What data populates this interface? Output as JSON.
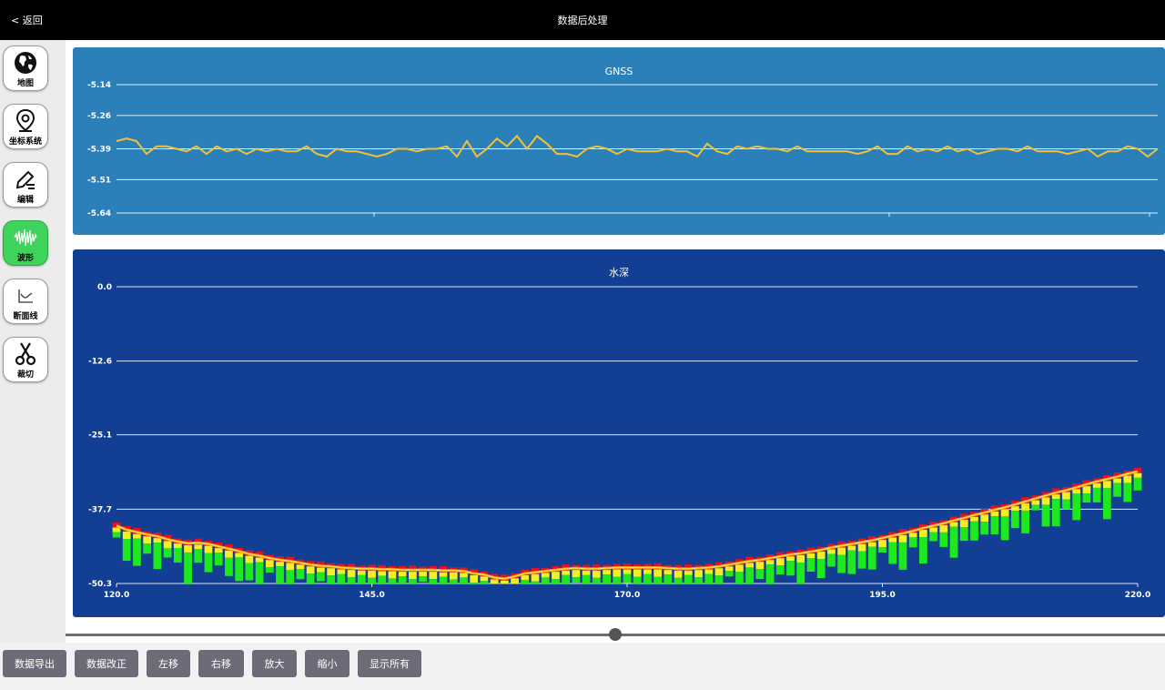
{
  "header": {
    "back_label": "< 返回",
    "title": "数据后处理"
  },
  "sidebar": {
    "items": [
      {
        "label": "地图",
        "icon": "globe-icon"
      },
      {
        "label": "坐标系统",
        "icon": "map-pin-icon"
      },
      {
        "label": "编辑",
        "icon": "edit-icon"
      },
      {
        "label": "波形",
        "icon": "waveform-icon",
        "active": true
      },
      {
        "label": "断面线",
        "icon": "section-chart-icon"
      },
      {
        "label": "裁切",
        "icon": "scissors-icon"
      }
    ]
  },
  "slider": {
    "value": 0.5
  },
  "toolbar": {
    "buttons": [
      "数据导出",
      "数据改正",
      "左移",
      "右移",
      "放大",
      "缩小",
      "显示所有"
    ]
  },
  "colors": {
    "gnss_background": "#2b80ba",
    "depth_background": "#123f94",
    "gnss_line": "#f1c232",
    "active_tool": "#3fd35c"
  },
  "chart_data": [
    {
      "type": "line",
      "title": "GNSS",
      "yticks": [
        "-5.14",
        "-5.26",
        "-5.39",
        "-5.51",
        "-5.64"
      ],
      "ylim": [
        -5.64,
        -5.14
      ],
      "grid": true,
      "series": [
        {
          "values": [
            -5.36,
            -5.35,
            -5.36,
            -5.41,
            -5.38,
            -5.38,
            -5.39,
            -5.4,
            -5.38,
            -5.41,
            -5.38,
            -5.4,
            -5.39,
            -5.41,
            -5.39,
            -5.4,
            -5.39,
            -5.4,
            -5.4,
            -5.38,
            -5.41,
            -5.42,
            -5.39,
            -5.4,
            -5.4,
            -5.41,
            -5.42,
            -5.41,
            -5.39,
            -5.39,
            -5.4,
            -5.39,
            -5.39,
            -5.38,
            -5.42,
            -5.36,
            -5.42,
            -5.39,
            -5.35,
            -5.38,
            -5.34,
            -5.39,
            -5.34,
            -5.37,
            -5.41,
            -5.41,
            -5.42,
            -5.39,
            -5.38,
            -5.39,
            -5.41,
            -5.39,
            -5.4,
            -5.4,
            -5.4,
            -5.39,
            -5.4,
            -5.4,
            -5.42,
            -5.37,
            -5.4,
            -5.41,
            -5.38,
            -5.39,
            -5.38,
            -5.39,
            -5.39,
            -5.4,
            -5.38,
            -5.4,
            -5.4,
            -5.4,
            -5.4,
            -5.4,
            -5.41,
            -5.4,
            -5.38,
            -5.41,
            -5.41,
            -5.38,
            -5.4,
            -5.39,
            -5.4,
            -5.38,
            -5.4,
            -5.39,
            -5.41,
            -5.4,
            -5.39,
            -5.39,
            -5.4,
            -5.38,
            -5.4,
            -5.4,
            -5.4,
            -5.41,
            -5.4,
            -5.39,
            -5.42,
            -5.4,
            -5.4,
            -5.38,
            -5.39,
            -5.42,
            -5.39
          ]
        }
      ]
    },
    {
      "type": "bar",
      "title": "水深",
      "yticks": [
        "0.0",
        "-12.6",
        "-25.1",
        "-37.7",
        "-50.3"
      ],
      "xticks": [
        "120.0",
        "145.0",
        "170.0",
        "195.0",
        "220.0"
      ],
      "xlim": [
        120,
        220
      ],
      "ylim": [
        -50.3,
        0
      ],
      "grid": true,
      "line_depth": [
        -40.5,
        -41.2,
        -41.6,
        -42.0,
        -42.3,
        -42.8,
        -43.2,
        -43.5,
        -43.4,
        -43.6,
        -44.0,
        -44.4,
        -44.8,
        -45.3,
        -45.6,
        -46.0,
        -46.3,
        -46.5,
        -46.8,
        -47.1,
        -47.3,
        -47.4,
        -47.6,
        -47.7,
        -47.8,
        -47.8,
        -47.9,
        -47.9,
        -48.0,
        -48.0,
        -48.0,
        -48.0,
        -48.1,
        -48.1,
        -48.2,
        -48.6,
        -48.8,
        -49.3,
        -49.5,
        -49.1,
        -48.6,
        -48.4,
        -48.2,
        -48.0,
        -47.8,
        -47.7,
        -47.8,
        -47.8,
        -47.7,
        -47.6,
        -47.6,
        -47.6,
        -47.6,
        -47.6,
        -47.7,
        -47.8,
        -47.8,
        -47.7,
        -47.6,
        -47.4,
        -47.1,
        -46.8,
        -46.5,
        -46.3,
        -46.0,
        -45.7,
        -45.4,
        -45.2,
        -44.9,
        -44.6,
        -44.2,
        -43.9,
        -43.6,
        -43.3,
        -43.0,
        -42.6,
        -42.2,
        -41.8,
        -41.4,
        -40.9,
        -40.5,
        -40.1,
        -39.6,
        -39.2,
        -38.7,
        -38.3,
        -37.8,
        -37.4,
        -36.9,
        -36.4,
        -35.9,
        -35.4,
        -34.9,
        -34.5,
        -34.0,
        -33.5,
        -33.0,
        -32.6,
        -32.2,
        -31.7,
        -31.3
      ]
    }
  ]
}
